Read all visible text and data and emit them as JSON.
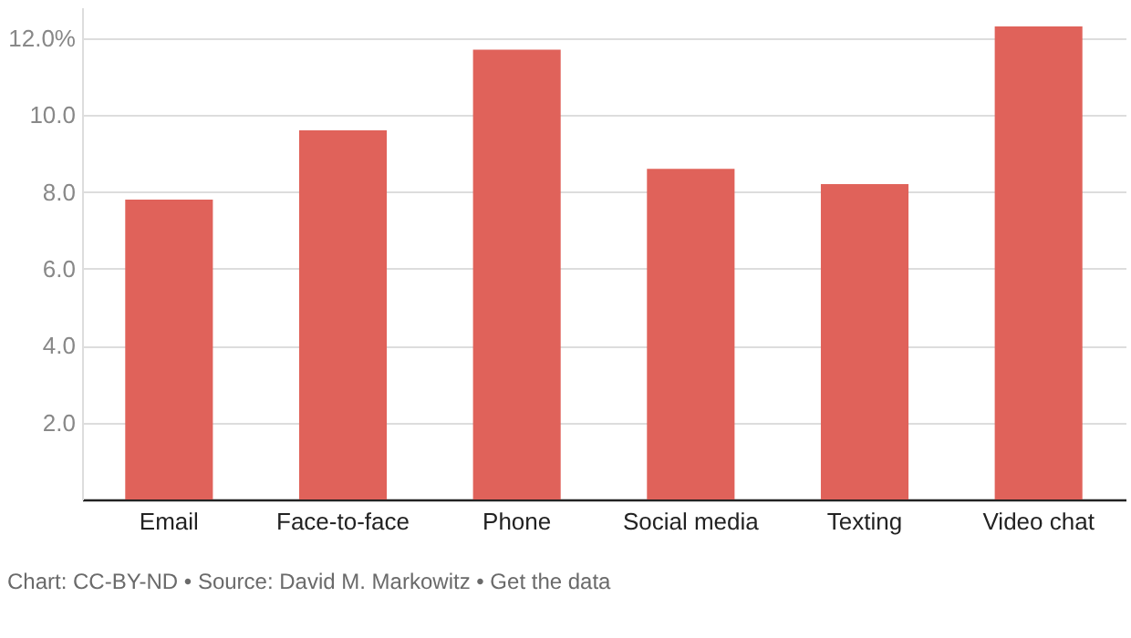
{
  "chart_data": {
    "type": "bar",
    "categories": [
      "Email",
      "Face-to-face",
      "Phone",
      "Social media",
      "Texting",
      "Video chat"
    ],
    "values": [
      7.8,
      9.6,
      11.7,
      8.6,
      8.2,
      12.3
    ],
    "color": "#e0625a",
    "ylim": [
      0,
      12.8
    ],
    "yticks": [
      {
        "value": 2,
        "label": "2.0"
      },
      {
        "value": 4,
        "label": "4.0"
      },
      {
        "value": 6,
        "label": "6.0"
      },
      {
        "value": 8,
        "label": "8.0"
      },
      {
        "value": 10,
        "label": "10.0"
      },
      {
        "value": 12,
        "label": "12.0%"
      }
    ],
    "grid": "y",
    "annotations": [
      "Chart: CC-BY-ND • Source: David M. Markowitz • Get the data"
    ]
  }
}
